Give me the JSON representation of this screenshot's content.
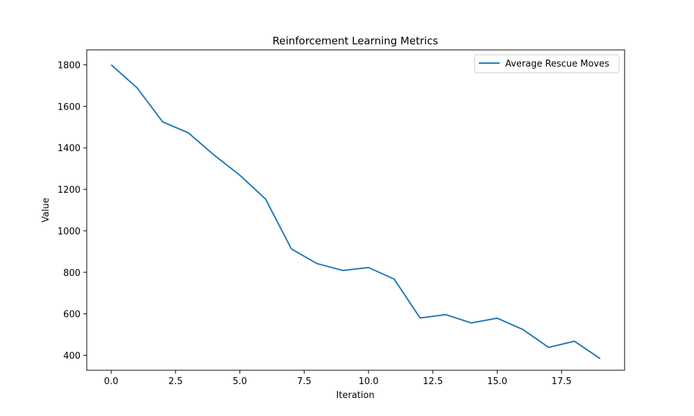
{
  "chart_data": {
    "type": "line",
    "title": "Reinforcement Learning Metrics",
    "xlabel": "Iteration",
    "ylabel": "Value",
    "xlim": [
      -0.95,
      19.95
    ],
    "ylim": [
      328,
      1872
    ],
    "xticks": [
      0.0,
      2.5,
      5.0,
      7.5,
      10.0,
      12.5,
      15.0,
      17.5
    ],
    "xtick_labels": [
      "0.0",
      "2.5",
      "5.0",
      "7.5",
      "10.0",
      "12.5",
      "15.0",
      "17.5"
    ],
    "yticks": [
      400,
      600,
      800,
      1000,
      1200,
      1400,
      1600,
      1800
    ],
    "ytick_labels": [
      "400",
      "600",
      "800",
      "1000",
      "1200",
      "1400",
      "1600",
      "1800"
    ],
    "grid": false,
    "legend_position": "top-right",
    "series": [
      {
        "name": "Average Rescue Moves",
        "color": "#1f77b4",
        "x": [
          0,
          1,
          2,
          3,
          4,
          5,
          6,
          7,
          8,
          9,
          10,
          11,
          12,
          13,
          14,
          15,
          16,
          17,
          18,
          19
        ],
        "values": [
          1800,
          1690,
          1525,
          1472,
          1365,
          1268,
          1153,
          913,
          842,
          809,
          823,
          767,
          580,
          596,
          556,
          579,
          524,
          438,
          468,
          384
        ]
      }
    ]
  }
}
